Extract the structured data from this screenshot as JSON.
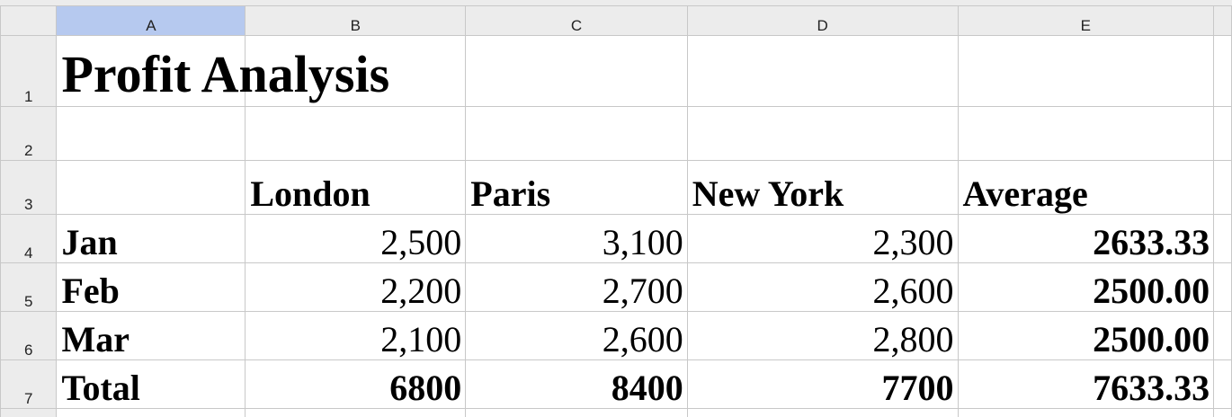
{
  "columns": [
    "A",
    "B",
    "C",
    "D",
    "E"
  ],
  "selected_column": "A",
  "rows": [
    "1",
    "2",
    "3",
    "4",
    "5",
    "6",
    "7"
  ],
  "title": "Profit Analysis",
  "headers": {
    "b": "London",
    "c": "Paris",
    "d": "New York",
    "e": "Average"
  },
  "data_rows": [
    {
      "label": "Jan",
      "london": "2,500",
      "paris": "3,100",
      "new_york": "2,300",
      "average": "2633.33"
    },
    {
      "label": "Feb",
      "london": "2,200",
      "paris": "2,700",
      "new_york": "2,600",
      "average": "2500.00"
    },
    {
      "label": "Mar",
      "london": "2,100",
      "paris": "2,600",
      "new_york": "2,800",
      "average": "2500.00"
    }
  ],
  "total_row": {
    "label": "Total",
    "london": "6800",
    "paris": "8400",
    "new_york": "7700",
    "average": "7633.33"
  }
}
